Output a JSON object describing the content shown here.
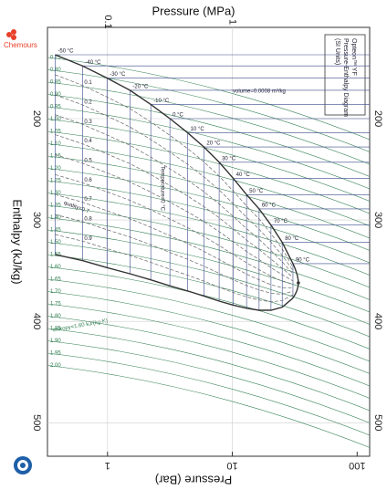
{
  "brand": "Chemours",
  "chart_data": {
    "type": "ph-diagram",
    "title": "Opteon™ YF",
    "subtitle": "Pressure-Enthalpy Diagram",
    "units_note": "(SI Units)",
    "x_label": "Pressure (MPa)",
    "x2_label": "Pressure (Bar)",
    "y_label": "Enthalpy (kJ/kg)",
    "xscale": "log",
    "xlim": [
      0.033,
      12.6
    ],
    "xticks": [
      0.1,
      1
    ],
    "x2lim": [
      0.33,
      126
    ],
    "x2ticks": [
      1,
      10,
      100
    ],
    "ylim": [
      110,
      533
    ],
    "yticks": [
      200,
      300,
      400,
      500
    ],
    "grid": true,
    "saturation": {
      "color": "#333333",
      "labels": [
        "-50 °C",
        "-40 °C",
        "-30 °C",
        "-20 °C",
        "-10 °C",
        "0 °C",
        "10 °C",
        "20 °C",
        "30 °C",
        "40 °C",
        "50 °C",
        "60 °C",
        "70 °C",
        "80 °C",
        "90 °C"
      ],
      "pressure": [
        0.038,
        0.063,
        0.099,
        0.151,
        0.222,
        0.316,
        0.439,
        0.592,
        0.784,
        1.018,
        1.3,
        1.638,
        2.04,
        2.51,
        3.06
      ],
      "h_liquid": [
        137,
        148,
        160,
        172,
        186,
        200,
        214,
        228,
        243,
        259,
        275,
        289,
        305,
        322,
        343
      ],
      "h_vapor": [
        334,
        340,
        347,
        353,
        359,
        365,
        370,
        375,
        380,
        384,
        387,
        389,
        389,
        386,
        377
      ]
    },
    "critical": {
      "pressure": 3.38,
      "h": 362
    },
    "quality": {
      "color": "#666666",
      "values": [
        0.1,
        0.2,
        0.3,
        0.4,
        0.5,
        0.6,
        0.7,
        0.8,
        0.9
      ]
    },
    "entropy": {
      "color": "#2e7d4f",
      "values": [
        0.75,
        0.8,
        0.85,
        0.9,
        0.95,
        1.0,
        1.05,
        1.1,
        1.15,
        1.2,
        1.25,
        1.3,
        1.35,
        1.4,
        1.45,
        1.5,
        1.55,
        1.6,
        1.65,
        1.7,
        1.75,
        1.8,
        1.85,
        1.9,
        1.95,
        2.0
      ],
      "value_labels": [
        "0.75",
        "0.80",
        "0.85",
        "0.90",
        "0.95",
        "1.00",
        "1.05",
        "1.10",
        "1.15",
        "1.20",
        "1.25",
        "1.30",
        "1.35",
        "1.40",
        "1.45",
        "1.50",
        "1.55",
        "1.60",
        "1.65",
        "1.70",
        "1.75",
        "1.80",
        "1.85",
        "1.90",
        "1.95",
        "2.00"
      ]
    },
    "annotations": [
      "volume=0.0008 m³/kg",
      "entropy=1.60 kJ/(kg·K)",
      "quality=0.7",
      "Temperature=0 °C"
    ]
  }
}
